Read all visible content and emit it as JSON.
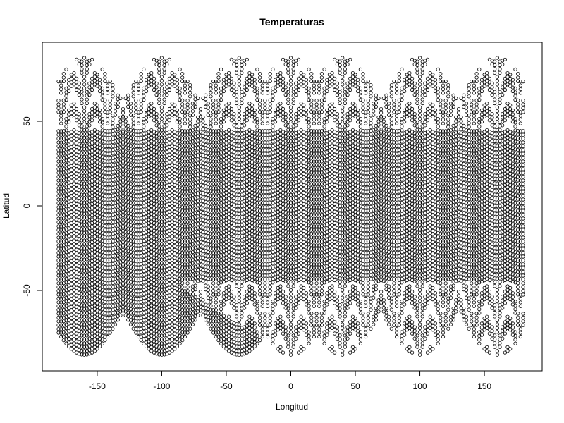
{
  "chart_data": {
    "type": "scatter",
    "title": "Temperaturas",
    "xlabel": "Longitud",
    "ylabel": "Latitud",
    "xlim": [
      -180,
      180
    ],
    "ylim": [
      -90,
      90
    ],
    "x_ticks": [
      -150,
      -100,
      -50,
      0,
      50,
      100,
      150
    ],
    "y_ticks": [
      -50,
      0,
      50
    ],
    "x_tick_labels": [
      "-150",
      "-100",
      "-50",
      "0",
      "50",
      "100",
      "150"
    ],
    "y_tick_labels": [
      "-50",
      "0",
      "50"
    ],
    "grid": false,
    "marker": "open-circle",
    "marker_color": "#000000",
    "point_structure": {
      "description_source": "dense lon/lat grid sampled in lobed pattern",
      "longitude_range": [
        -180,
        180
      ],
      "latitude_range": [
        -88,
        88
      ],
      "lobe_centers_longitude": [
        -160,
        -100,
        -40,
        0,
        40,
        100,
        160
      ],
      "dense_band_latitude": [
        -45,
        45
      ]
    }
  }
}
